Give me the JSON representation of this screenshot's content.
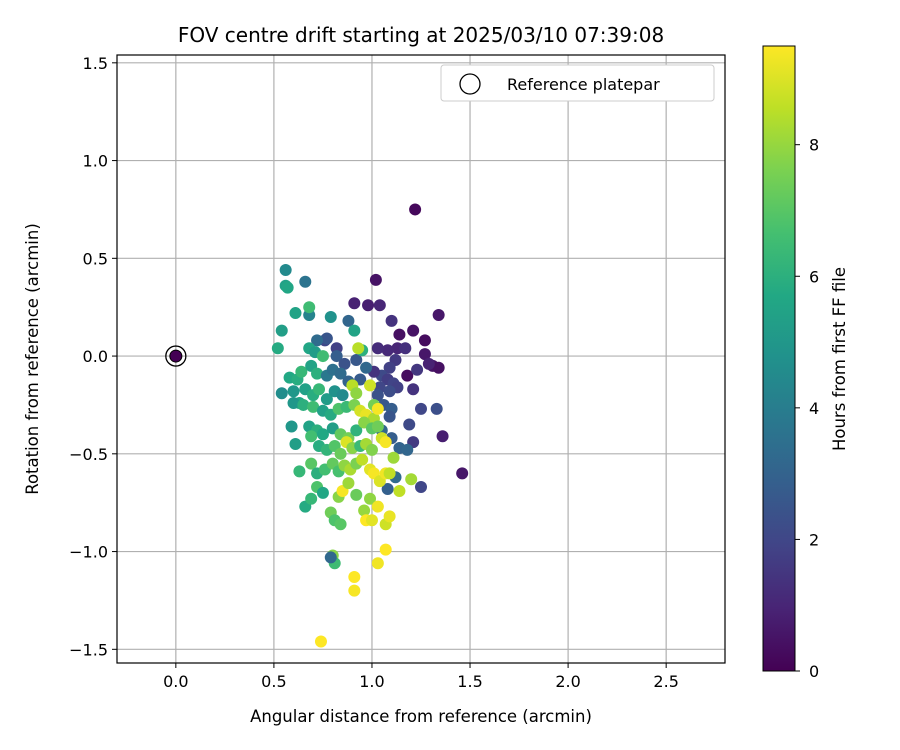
{
  "chart_data": {
    "type": "scatter",
    "title": "FOV centre drift starting at 2025/03/10 07:39:08",
    "xlabel": "Angular distance from reference (arcmin)",
    "ylabel": "Rotation from reference (arcmin)",
    "xlim": [
      -0.3,
      2.8
    ],
    "ylim": [
      -1.57,
      1.54
    ],
    "xticks": [
      0.0,
      0.5,
      1.0,
      1.5,
      2.0,
      2.5
    ],
    "xtick_labels": [
      "0.0",
      "0.5",
      "1.0",
      "1.5",
      "2.0",
      "2.5"
    ],
    "yticks": [
      -1.5,
      -1.0,
      -0.5,
      0.0,
      0.5,
      1.0,
      1.5
    ],
    "ytick_labels": [
      "−1.5",
      "−1.0",
      "−0.5",
      "0.0",
      "0.5",
      "1.0",
      "1.5"
    ],
    "grid": true,
    "legend": {
      "location": "upper-right",
      "entries": [
        "Reference platepar"
      ]
    },
    "colorbar": {
      "label": "Hours from first FF file",
      "colormap": "viridis",
      "range": [
        0,
        9.5
      ],
      "ticks": [
        0,
        2,
        4,
        6,
        8
      ],
      "tick_labels": [
        "0",
        "2",
        "4",
        "6",
        "8"
      ]
    },
    "reference_point": {
      "x": 0.0,
      "y": 0.0,
      "hours": 0.0
    },
    "points": [
      [
        1.22,
        0.75,
        0.2
      ],
      [
        1.02,
        0.39,
        0.5
      ],
      [
        1.34,
        0.21,
        0.6
      ],
      [
        0.91,
        0.27,
        0.9
      ],
      [
        0.98,
        0.26,
        0.8
      ],
      [
        1.04,
        0.26,
        1.0
      ],
      [
        1.21,
        0.13,
        0.5
      ],
      [
        1.14,
        0.11,
        0.4
      ],
      [
        1.1,
        0.18,
        1.4
      ],
      [
        1.27,
        0.08,
        0.3
      ],
      [
        1.27,
        0.01,
        0.6
      ],
      [
        1.31,
        -0.05,
        0.5
      ],
      [
        1.34,
        -0.06,
        0.4
      ],
      [
        1.29,
        -0.04,
        0.9
      ],
      [
        1.18,
        -0.1,
        0.3
      ],
      [
        1.13,
        0.04,
        1.0
      ],
      [
        1.08,
        0.03,
        1.1
      ],
      [
        1.03,
        0.04,
        1.2
      ],
      [
        1.17,
        0.04,
        1.3
      ],
      [
        1.12,
        -0.02,
        1.6
      ],
      [
        1.09,
        -0.06,
        1.8
      ],
      [
        1.05,
        -0.1,
        2.1
      ],
      [
        1.01,
        -0.08,
        1.4
      ],
      [
        1.08,
        -0.12,
        1.7
      ],
      [
        1.11,
        -0.14,
        1.9
      ],
      [
        1.04,
        -0.16,
        2.0
      ],
      [
        1.23,
        -0.07,
        1.5
      ],
      [
        1.21,
        -0.17,
        1.4
      ],
      [
        1.13,
        -0.16,
        1.8
      ],
      [
        1.09,
        -0.18,
        2.2
      ],
      [
        1.03,
        -0.2,
        2.4
      ],
      [
        1.06,
        -0.25,
        2.6
      ],
      [
        1.1,
        -0.27,
        2.8
      ],
      [
        1.25,
        -0.27,
        2.0
      ],
      [
        1.33,
        -0.27,
        2.3
      ],
      [
        1.36,
        -0.41,
        0.8
      ],
      [
        1.46,
        -0.6,
        0.6
      ],
      [
        1.21,
        -0.44,
        1.6
      ],
      [
        1.19,
        -0.35,
        2.1
      ],
      [
        1.09,
        -0.31,
        2.5
      ],
      [
        1.1,
        -0.42,
        2.8
      ],
      [
        1.14,
        -0.47,
        3.0
      ],
      [
        1.18,
        -0.48,
        3.1
      ],
      [
        1.05,
        -0.38,
        3.2
      ],
      [
        1.25,
        -0.67,
        2.0
      ],
      [
        1.08,
        -0.68,
        2.9
      ],
      [
        1.12,
        -0.62,
        3.3
      ],
      [
        0.88,
        0.18,
        3.1
      ],
      [
        0.82,
        0.04,
        1.8
      ],
      [
        0.76,
        0.08,
        2.0
      ],
      [
        0.77,
        0.09,
        2.5
      ],
      [
        0.72,
        0.08,
        3.3
      ],
      [
        0.66,
        0.38,
        3.6
      ],
      [
        0.68,
        0.21,
        4.2
      ],
      [
        0.79,
        0.2,
        4.8
      ],
      [
        0.91,
        0.13,
        5.5
      ],
      [
        0.56,
        0.44,
        4.5
      ],
      [
        0.56,
        0.36,
        5.4
      ],
      [
        0.57,
        0.35,
        5.6
      ],
      [
        0.68,
        0.25,
        6.5
      ],
      [
        0.61,
        0.22,
        5.5
      ],
      [
        0.54,
        0.13,
        5.3
      ],
      [
        0.52,
        0.04,
        5.8
      ],
      [
        0.68,
        0.04,
        5.6
      ],
      [
        0.71,
        0.02,
        5.2
      ],
      [
        0.75,
        0.0,
        6.5
      ],
      [
        0.82,
        0.0,
        2.8
      ],
      [
        0.86,
        -0.04,
        2.4
      ],
      [
        0.92,
        -0.02,
        2.6
      ],
      [
        0.95,
        0.03,
        6.0
      ],
      [
        0.93,
        0.04,
        8.5
      ],
      [
        0.58,
        -0.11,
        5.7
      ],
      [
        0.62,
        -0.12,
        5.9
      ],
      [
        0.64,
        -0.08,
        6.3
      ],
      [
        0.69,
        -0.05,
        5.5
      ],
      [
        0.72,
        -0.09,
        6.0
      ],
      [
        0.77,
        -0.1,
        3.8
      ],
      [
        0.8,
        -0.07,
        3.5
      ],
      [
        0.84,
        -0.09,
        3.3
      ],
      [
        0.88,
        -0.13,
        3.0
      ],
      [
        0.94,
        -0.12,
        2.7
      ],
      [
        0.97,
        -0.06,
        3.2
      ],
      [
        0.54,
        -0.19,
        4.6
      ],
      [
        0.6,
        -0.18,
        5.0
      ],
      [
        0.63,
        -0.24,
        5.6
      ],
      [
        0.66,
        -0.17,
        5.4
      ],
      [
        0.7,
        -0.2,
        5.9
      ],
      [
        0.73,
        -0.17,
        6.3
      ],
      [
        0.77,
        -0.22,
        5.2
      ],
      [
        0.81,
        -0.18,
        4.8
      ],
      [
        0.85,
        -0.2,
        4.5
      ],
      [
        0.9,
        -0.15,
        8.5
      ],
      [
        0.92,
        -0.19,
        7.9
      ],
      [
        0.99,
        -0.15,
        8.8
      ],
      [
        1.01,
        -0.25,
        7.5
      ],
      [
        0.6,
        -0.24,
        5.0
      ],
      [
        0.65,
        -0.25,
        6.0
      ],
      [
        0.7,
        -0.26,
        6.5
      ],
      [
        0.75,
        -0.28,
        5.4
      ],
      [
        0.79,
        -0.3,
        5.8
      ],
      [
        0.83,
        -0.27,
        6.8
      ],
      [
        0.87,
        -0.26,
        6.4
      ],
      [
        0.91,
        -0.25,
        7.6
      ],
      [
        0.94,
        -0.28,
        8.9
      ],
      [
        0.97,
        -0.3,
        9.2
      ],
      [
        1.01,
        -0.32,
        8.3
      ],
      [
        1.03,
        -0.27,
        9.4
      ],
      [
        0.59,
        -0.36,
        5.0
      ],
      [
        0.68,
        -0.36,
        5.5
      ],
      [
        0.72,
        -0.38,
        6.0
      ],
      [
        0.75,
        -0.4,
        5.7
      ],
      [
        0.8,
        -0.37,
        5.3
      ],
      [
        0.84,
        -0.4,
        7.2
      ],
      [
        0.88,
        -0.42,
        7.5
      ],
      [
        0.92,
        -0.38,
        6.1
      ],
      [
        0.96,
        -0.34,
        7.8
      ],
      [
        1.0,
        -0.37,
        7.0
      ],
      [
        1.03,
        -0.36,
        7.4
      ],
      [
        1.05,
        -0.42,
        8.8
      ],
      [
        0.61,
        -0.45,
        5.3
      ],
      [
        0.69,
        -0.41,
        6.6
      ],
      [
        0.73,
        -0.46,
        5.9
      ],
      [
        0.77,
        -0.48,
        6.2
      ],
      [
        0.81,
        -0.46,
        6.9
      ],
      [
        0.84,
        -0.5,
        7.3
      ],
      [
        0.87,
        -0.44,
        9.0
      ],
      [
        0.9,
        -0.47,
        7.8
      ],
      [
        0.94,
        -0.46,
        6.4
      ],
      [
        0.97,
        -0.45,
        8.2
      ],
      [
        1.0,
        -0.48,
        7.7
      ],
      [
        1.07,
        -0.44,
        9.4
      ],
      [
        1.11,
        -0.52,
        8.1
      ],
      [
        0.63,
        -0.59,
        6.3
      ],
      [
        0.69,
        -0.55,
        7.0
      ],
      [
        0.72,
        -0.6,
        6.0
      ],
      [
        0.76,
        -0.58,
        6.6
      ],
      [
        0.8,
        -0.55,
        7.2
      ],
      [
        0.83,
        -0.59,
        6.7
      ],
      [
        0.86,
        -0.56,
        7.9
      ],
      [
        0.89,
        -0.58,
        8.3
      ],
      [
        0.92,
        -0.55,
        7.6
      ],
      [
        0.95,
        -0.53,
        8.6
      ],
      [
        0.99,
        -0.58,
        9.1
      ],
      [
        1.01,
        -0.6,
        9.4
      ],
      [
        1.04,
        -0.64,
        9.0
      ],
      [
        1.07,
        -0.6,
        9.3
      ],
      [
        1.09,
        -0.6,
        8.6
      ],
      [
        0.66,
        -0.77,
        5.8
      ],
      [
        0.69,
        -0.73,
        6.3
      ],
      [
        0.72,
        -0.67,
        6.8
      ],
      [
        0.75,
        -0.7,
        5.6
      ],
      [
        0.79,
        -0.8,
        7.4
      ],
      [
        0.83,
        -0.72,
        7.8
      ],
      [
        0.85,
        -0.69,
        9.4
      ],
      [
        0.88,
        -0.65,
        8.1
      ],
      [
        0.92,
        -0.71,
        7.3
      ],
      [
        0.96,
        -0.79,
        8.0
      ],
      [
        0.99,
        -0.73,
        7.9
      ],
      [
        1.03,
        -0.77,
        9.3
      ],
      [
        1.07,
        -0.86,
        8.8
      ],
      [
        1.09,
        -0.82,
        9.2
      ],
      [
        1.14,
        -0.69,
        8.6
      ],
      [
        1.2,
        -0.63,
        8.2
      ],
      [
        0.81,
        -0.84,
        6.8
      ],
      [
        0.84,
        -0.86,
        7.0
      ],
      [
        0.97,
        -0.84,
        9.5
      ],
      [
        1.0,
        -0.84,
        9.1
      ],
      [
        1.07,
        -0.99,
        9.5
      ],
      [
        0.8,
        -1.02,
        7.8
      ],
      [
        0.81,
        -1.06,
        6.5
      ],
      [
        0.79,
        -1.03,
        3.2
      ],
      [
        1.03,
        -1.06,
        9.3
      ],
      [
        0.91,
        -1.13,
        9.5
      ],
      [
        0.91,
        -1.2,
        9.4
      ],
      [
        0.74,
        -1.46,
        9.5
      ]
    ]
  }
}
